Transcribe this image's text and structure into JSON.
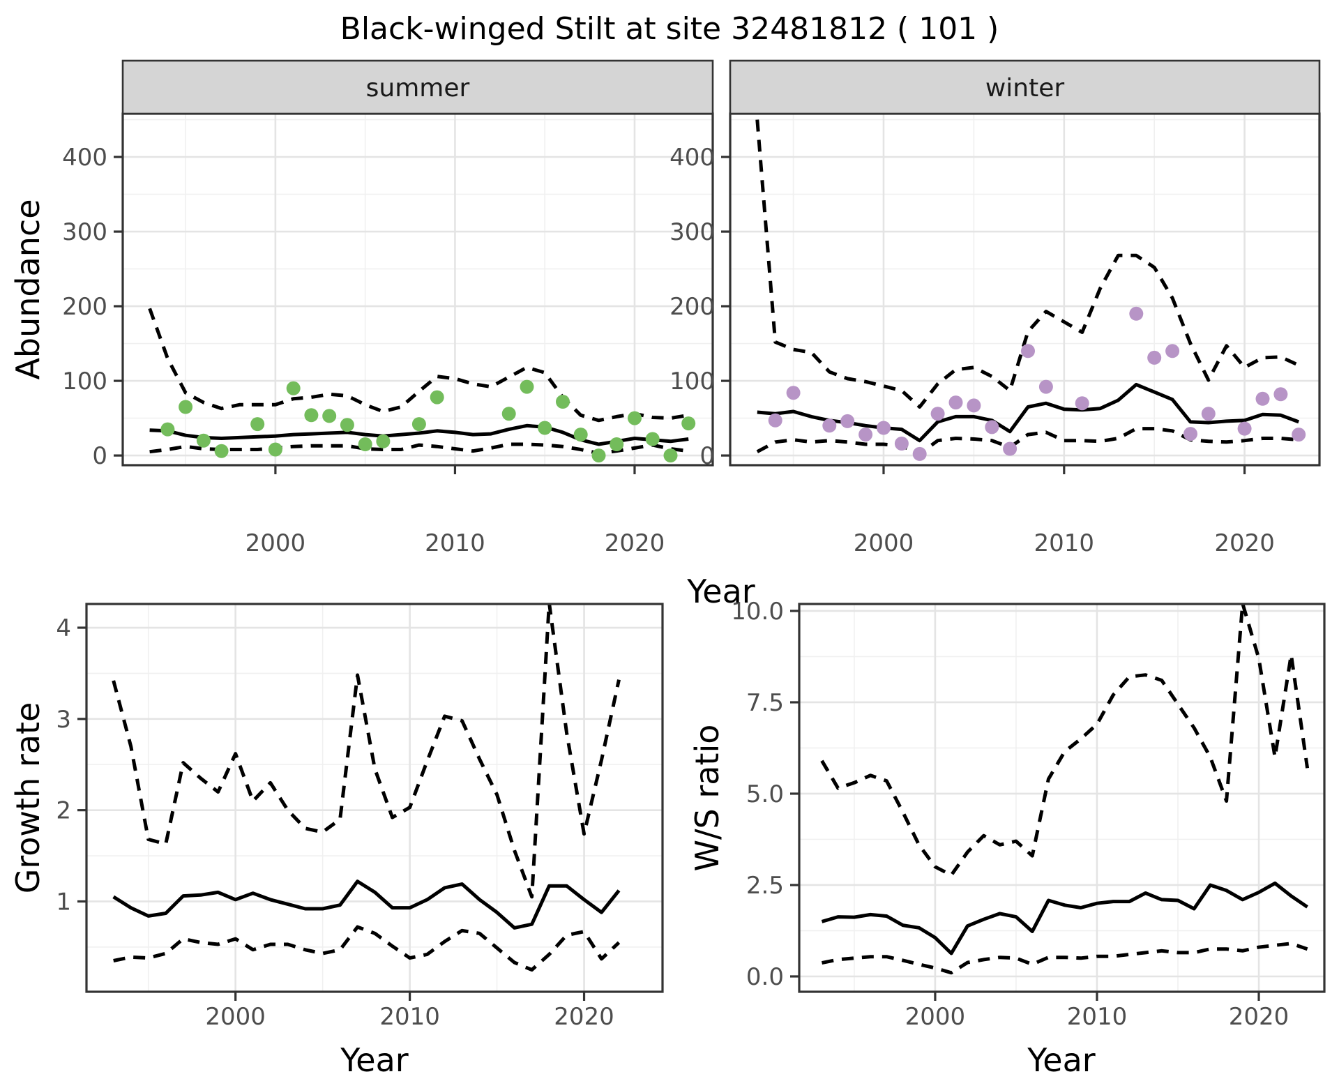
{
  "title": "Black-winged Stilt at site 32481812 ( 101 )",
  "axis_labels": {
    "x": "Year",
    "y_abundance": "Abundance",
    "y_growth": "Growth rate",
    "y_ws": "W/S ratio"
  },
  "colors": {
    "summer_points": "#73BC5B",
    "winter_points": "#B794C6",
    "line": "#000000",
    "strip_fill": "#D5D5D5",
    "strip_border": "#333333",
    "panel_border": "#333333",
    "grid_major": "#E4E4E4",
    "grid_minor": "#F0F0F0",
    "axis_text": "#4D4D4D",
    "tick_mark": "#333333"
  },
  "chart_data": [
    {
      "id": "summer",
      "type": "line",
      "facet_label": "summer",
      "xlabel": "Year",
      "ylabel": "Abundance",
      "xlim": [
        1991.5,
        2024.35
      ],
      "ylim": [
        -13,
        458
      ],
      "xticks": {
        "major": [
          2000,
          2010,
          2020
        ],
        "minor": [
          1995,
          2005,
          2015
        ],
        "labels": [
          "2000",
          "2010",
          "2020"
        ]
      },
      "yticks": {
        "major": [
          0,
          100,
          200,
          300,
          400
        ],
        "minor": [
          50,
          150,
          250,
          350,
          450
        ],
        "labels": [
          "0",
          "100",
          "200",
          "300",
          "400"
        ]
      },
      "years": [
        1993,
        1994,
        1995,
        1996,
        1997,
        1998,
        1999,
        2000,
        2001,
        2002,
        2003,
        2004,
        2005,
        2006,
        2007,
        2008,
        2009,
        2010,
        2011,
        2012,
        2013,
        2014,
        2015,
        2016,
        2017,
        2018,
        2019,
        2020,
        2021,
        2022,
        2023
      ],
      "series": [
        {
          "name": "median",
          "style": "solid",
          "values": [
            34,
            33,
            27,
            24,
            23,
            24,
            25,
            26,
            28,
            29,
            30,
            31,
            28,
            26,
            28,
            30,
            33,
            31,
            28,
            29,
            35,
            40,
            38,
            31,
            21,
            15,
            19,
            23,
            21,
            19,
            22
          ]
        },
        {
          "name": "upper_ci",
          "style": "dashed",
          "values": [
            197,
            130,
            84,
            71,
            63,
            68,
            68,
            68,
            76,
            78,
            82,
            80,
            68,
            59,
            65,
            86,
            106,
            103,
            96,
            92,
            105,
            118,
            111,
            78,
            54,
            47,
            52,
            56,
            51,
            50,
            54
          ]
        },
        {
          "name": "lower_ci",
          "style": "dashed",
          "values": [
            5,
            8,
            12,
            9,
            8,
            8,
            8,
            10,
            12,
            13,
            13,
            13,
            9,
            8,
            8,
            14,
            12,
            9,
            6,
            10,
            15,
            15,
            14,
            12,
            8,
            3,
            6,
            10,
            14,
            9,
            6
          ]
        }
      ],
      "points": {
        "color_key": "summer_points",
        "years": [
          1994,
          1995,
          1996,
          1997,
          1999,
          2000,
          2001,
          2002,
          2003,
          2004,
          2005,
          2006,
          2008,
          2009,
          2013,
          2014,
          2015,
          2016,
          2017,
          2018,
          2019,
          2020,
          2021,
          2022,
          2023
        ],
        "values": [
          35,
          65,
          20,
          6,
          42,
          8,
          90,
          54,
          53,
          41,
          15,
          19,
          42,
          78,
          56,
          92,
          37,
          72,
          28,
          0,
          15,
          50,
          22,
          0,
          43
        ]
      }
    },
    {
      "id": "winter",
      "type": "line",
      "facet_label": "winter",
      "xlabel": "Year",
      "ylabel": "Abundance",
      "xlim": [
        1991.5,
        2024.15
      ],
      "ylim": [
        -13,
        458
      ],
      "xticks": {
        "major": [
          2000,
          2010,
          2020
        ],
        "minor": [
          1995,
          2005,
          2015
        ],
        "labels": [
          "2000",
          "2010",
          "2020"
        ]
      },
      "yticks": {
        "major": [
          0,
          100,
          200,
          300,
          400
        ],
        "minor": [
          50,
          150,
          250,
          350,
          450
        ],
        "labels": [
          "0",
          "100",
          "200",
          "300",
          "400"
        ]
      },
      "years": [
        1993,
        1994,
        1995,
        1996,
        1997,
        1998,
        1999,
        2000,
        2001,
        2002,
        2003,
        2004,
        2005,
        2006,
        2007,
        2008,
        2009,
        2010,
        2011,
        2012,
        2013,
        2014,
        2015,
        2016,
        2017,
        2018,
        2019,
        2020,
        2021,
        2022,
        2023
      ],
      "series": [
        {
          "name": "median",
          "style": "solid",
          "values": [
            58,
            56,
            59,
            52,
            47,
            44,
            40,
            37,
            35,
            20,
            45,
            52,
            52,
            47,
            32,
            65,
            70,
            62,
            61,
            63,
            74,
            95,
            85,
            75,
            45,
            44,
            46,
            47,
            55,
            54,
            45
          ]
        },
        {
          "name": "upper_ci",
          "style": "dashed",
          "values": [
            450,
            152,
            142,
            138,
            112,
            103,
            99,
            93,
            87,
            65,
            96,
            115,
            118,
            106,
            87,
            166,
            193,
            179,
            165,
            224,
            268,
            268,
            252,
            211,
            150,
            101,
            147,
            118,
            131,
            132,
            121
          ]
        },
        {
          "name": "lower_ci",
          "style": "dashed",
          "values": [
            5,
            18,
            21,
            18,
            20,
            18,
            15,
            15,
            13,
            2,
            20,
            23,
            22,
            20,
            11,
            28,
            31,
            20,
            20,
            19,
            23,
            36,
            36,
            33,
            21,
            19,
            18,
            20,
            23,
            23,
            21
          ]
        }
      ],
      "points": {
        "color_key": "winter_points",
        "years": [
          1994,
          1995,
          1997,
          1998,
          1999,
          2000,
          2001,
          2002,
          2003,
          2004,
          2005,
          2006,
          2007,
          2008,
          2009,
          2011,
          2014,
          2015,
          2016,
          2017,
          2018,
          2020,
          2021,
          2022,
          2023
        ],
        "values": [
          47,
          84,
          40,
          46,
          28,
          37,
          16,
          2,
          56,
          71,
          67,
          38,
          9,
          140,
          92,
          70,
          190,
          131,
          140,
          29,
          56,
          36,
          76,
          82,
          28
        ]
      }
    },
    {
      "id": "growth",
      "type": "line",
      "facet_label": null,
      "xlabel": "Year",
      "ylabel": "Growth rate",
      "xlim": [
        1991.45,
        2024.5
      ],
      "ylim": [
        0.01,
        4.26
      ],
      "xticks": {
        "major": [
          2000,
          2010,
          2020
        ],
        "minor": [
          1995,
          2005,
          2015
        ],
        "labels": [
          "2000",
          "2010",
          "2020"
        ]
      },
      "yticks": {
        "major": [
          1,
          2,
          3,
          4
        ],
        "minor": [
          0.5,
          1.5,
          2.5,
          3.5
        ],
        "labels": [
          "1",
          "2",
          "3",
          "4"
        ]
      },
      "years": [
        1993,
        1994,
        1995,
        1996,
        1997,
        1998,
        1999,
        2000,
        2001,
        2002,
        2003,
        2004,
        2005,
        2006,
        2007,
        2008,
        2009,
        2010,
        2011,
        2012,
        2013,
        2014,
        2015,
        2016,
        2017,
        2018,
        2019,
        2020,
        2021,
        2022
      ],
      "series": [
        {
          "name": "median",
          "style": "solid",
          "values": [
            1.05,
            0.93,
            0.84,
            0.87,
            1.06,
            1.07,
            1.1,
            1.02,
            1.09,
            1.02,
            0.97,
            0.92,
            0.92,
            0.96,
            1.22,
            1.1,
            0.93,
            0.93,
            1.02,
            1.15,
            1.19,
            1.02,
            0.88,
            0.71,
            0.75,
            1.17,
            1.17,
            1.02,
            0.88,
            1.12
          ]
        },
        {
          "name": "upper_ci",
          "style": "dashed",
          "values": [
            3.42,
            2.7,
            1.68,
            1.63,
            2.52,
            2.35,
            2.2,
            2.62,
            2.1,
            2.3,
            2.0,
            1.8,
            1.76,
            1.9,
            3.48,
            2.45,
            1.92,
            2.03,
            2.54,
            3.03,
            2.98,
            2.56,
            2.17,
            1.56,
            1.05,
            4.27,
            2.85,
            1.74,
            2.55,
            3.43
          ]
        },
        {
          "name": "lower_ci",
          "style": "dashed",
          "values": [
            0.35,
            0.39,
            0.38,
            0.43,
            0.59,
            0.55,
            0.53,
            0.59,
            0.47,
            0.53,
            0.53,
            0.47,
            0.43,
            0.47,
            0.72,
            0.65,
            0.51,
            0.38,
            0.42,
            0.56,
            0.68,
            0.65,
            0.49,
            0.33,
            0.25,
            0.42,
            0.63,
            0.67,
            0.37,
            0.55
          ]
        }
      ],
      "points": null
    },
    {
      "id": "ws",
      "type": "line",
      "facet_label": null,
      "xlabel": "Year",
      "ylabel": "W/S ratio",
      "xlim": [
        1991.6,
        2024.05
      ],
      "ylim": [
        -0.42,
        10.19
      ],
      "xticks": {
        "major": [
          2000,
          2010,
          2020
        ],
        "minor": [
          1995,
          2005,
          2015
        ],
        "labels": [
          "2000",
          "2010",
          "2020"
        ]
      },
      "yticks": {
        "major": [
          0,
          2.5,
          5,
          7.5,
          10
        ],
        "minor": [
          1.25,
          3.75,
          6.25,
          8.75
        ],
        "labels": [
          "0.0",
          "2.5",
          "5.0",
          "7.5",
          "10.0"
        ]
      },
      "years": [
        1993,
        1994,
        1995,
        1996,
        1997,
        1998,
        1999,
        2000,
        2001,
        2002,
        2003,
        2004,
        2005,
        2006,
        2007,
        2008,
        2009,
        2010,
        2011,
        2012,
        2013,
        2014,
        2015,
        2016,
        2017,
        2018,
        2019,
        2020,
        2021,
        2022,
        2023
      ],
      "series": [
        {
          "name": "median",
          "style": "solid",
          "values": [
            1.5,
            1.63,
            1.62,
            1.69,
            1.65,
            1.4,
            1.33,
            1.06,
            0.63,
            1.38,
            1.56,
            1.72,
            1.63,
            1.23,
            2.08,
            1.95,
            1.88,
            2.0,
            2.05,
            2.05,
            2.28,
            2.1,
            2.08,
            1.85,
            2.5,
            2.35,
            2.1,
            2.3,
            2.55,
            2.2,
            1.9
          ]
        },
        {
          "name": "upper_ci",
          "style": "dashed",
          "values": [
            5.9,
            5.15,
            5.3,
            5.5,
            5.35,
            4.5,
            3.6,
            3.0,
            2.77,
            3.4,
            3.85,
            3.6,
            3.7,
            3.3,
            5.4,
            6.15,
            6.5,
            6.9,
            7.7,
            8.2,
            8.25,
            8.1,
            7.45,
            6.8,
            6.0,
            4.8,
            10.2,
            8.7,
            6.0,
            8.8,
            5.7
          ]
        },
        {
          "name": "lower_ci",
          "style": "dashed",
          "values": [
            0.37,
            0.46,
            0.5,
            0.54,
            0.54,
            0.44,
            0.33,
            0.23,
            0.1,
            0.38,
            0.46,
            0.52,
            0.5,
            0.33,
            0.52,
            0.52,
            0.5,
            0.55,
            0.55,
            0.6,
            0.65,
            0.7,
            0.65,
            0.65,
            0.75,
            0.75,
            0.7,
            0.8,
            0.85,
            0.9,
            0.75
          ]
        }
      ],
      "points": null
    }
  ]
}
